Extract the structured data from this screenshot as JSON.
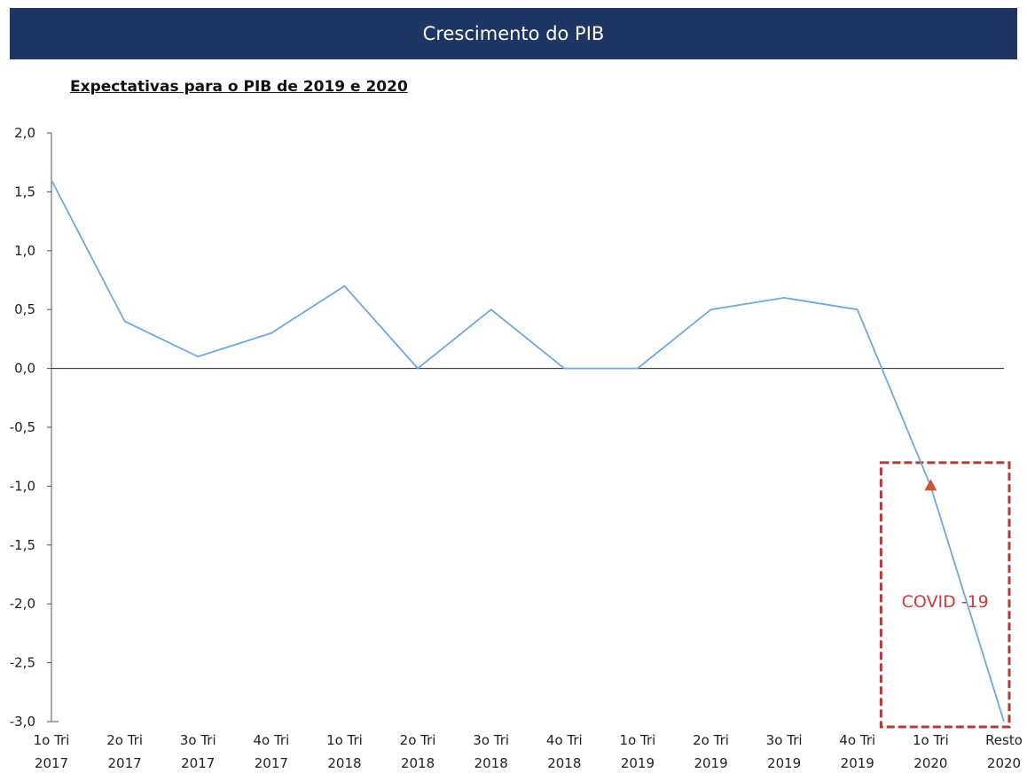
{
  "header": {
    "title": "Crescimento do PIB"
  },
  "subtitle": "Expectativas para o PIB de 2019 e 2020",
  "colors": {
    "banner": "#1f3564",
    "line": "#6fa8dc",
    "annotation": "#b23a3a",
    "marker": "#cc5533"
  },
  "chart_data": {
    "type": "line",
    "categories": [
      [
        "1o Tri",
        "2017"
      ],
      [
        "2o Tri",
        "2017"
      ],
      [
        "3o Tri",
        "2017"
      ],
      [
        "4o Tri",
        "2017"
      ],
      [
        "1o Tri",
        "2018"
      ],
      [
        "2o Tri",
        "2018"
      ],
      [
        "3o Tri",
        "2018"
      ],
      [
        "4o Tri",
        "2018"
      ],
      [
        "1o Tri",
        "2019"
      ],
      [
        "2o Tri",
        "2019"
      ],
      [
        "3o Tri",
        "2019"
      ],
      [
        "4o Tri",
        "2019"
      ],
      [
        "1o Tri",
        "2020"
      ],
      [
        "Resto",
        "2020"
      ]
    ],
    "series": [
      {
        "values": [
          1.6,
          0.4,
          0.1,
          0.3,
          0.7,
          0.0,
          0.5,
          0.0,
          0.0,
          0.5,
          0.6,
          0.5,
          -1.0,
          -3.0
        ]
      }
    ],
    "ylim": [
      -3.0,
      2.0
    ],
    "yticks": [
      "2,0",
      "1,5",
      "1,0",
      "0,5",
      "0,0",
      "-0,5",
      "-1,0",
      "-1,5",
      "-2,0",
      "-2,5",
      "-3,0"
    ],
    "ytick_values": [
      2.0,
      1.5,
      1.0,
      0.5,
      0.0,
      -0.5,
      -1.0,
      -1.5,
      -2.0,
      -2.5,
      -3.0
    ],
    "grid": false,
    "zero_line": true,
    "marker": {
      "category_index": 12,
      "value": -1.0,
      "shape": "triangle"
    },
    "annotation": {
      "text": "COVID -19",
      "category_range": [
        12,
        13
      ],
      "y_range": [
        -0.8,
        -3.0
      ]
    }
  }
}
